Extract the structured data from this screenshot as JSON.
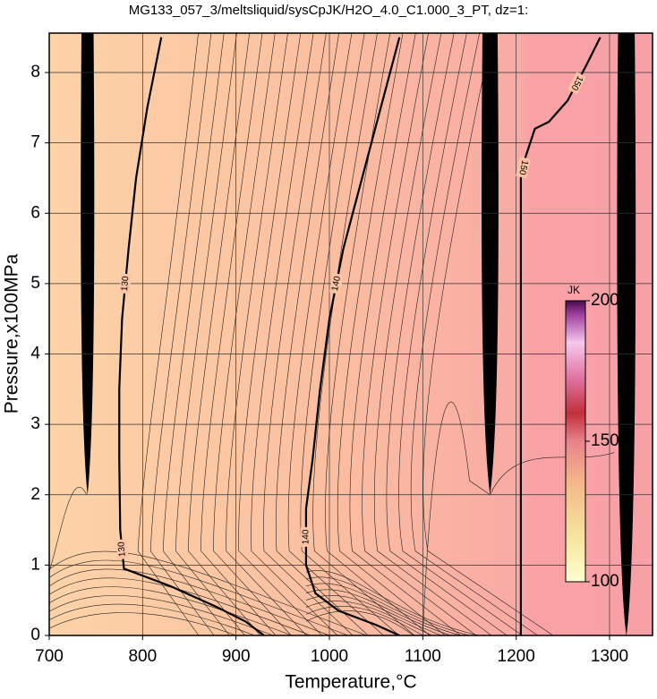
{
  "chart_data": {
    "type": "contour",
    "title": "MG133_057_3/meltsliquid/sysCpJK/H2O_4.0_C1.000_3_PT, dz=1:",
    "x_label": "Temperature,°C",
    "y_label": "Pressure,x100MPa",
    "xlim": [
      700,
      1346
    ],
    "xticks": [
      700,
      800,
      900,
      1000,
      1100,
      1200,
      1300
    ],
    "ylim": [
      0,
      8.56
    ],
    "yticks": [
      0,
      1,
      2,
      3,
      4,
      5,
      6,
      7,
      8
    ],
    "grid": true,
    "contours": [
      {
        "level": 130,
        "x": [
          820,
          805,
          793,
          785,
          778,
          775,
          775,
          776,
          780,
          830,
          880,
          910,
          930
        ],
        "y": [
          8.5,
          7.5,
          6.5,
          5.5,
          4.5,
          3.5,
          2.5,
          1.5,
          0.95,
          0.7,
          0.4,
          0.2,
          0
        ]
      },
      {
        "level": 140,
        "x": [
          1075,
          1055,
          1035,
          1015,
          1000,
          990,
          982,
          975,
          975,
          985,
          1010,
          1050,
          1075
        ],
        "y": [
          8.5,
          7.5,
          6.5,
          5.5,
          4.5,
          3.5,
          2.5,
          1.8,
          1.0,
          0.6,
          0.35,
          0.15,
          0
        ]
      },
      {
        "level": 150,
        "x": [
          1205,
          1205,
          1205,
          1205,
          1210,
          1220,
          1235,
          1255,
          1275,
          1290
        ],
        "y": [
          0,
          2,
          4,
          6.5,
          6.8,
          7.2,
          7.3,
          7.6,
          8.1,
          8.5
        ]
      }
    ],
    "colorbar": {
      "label": "JK",
      "lim": [
        100,
        200
      ],
      "ticks": [
        100,
        150,
        200
      ]
    }
  }
}
